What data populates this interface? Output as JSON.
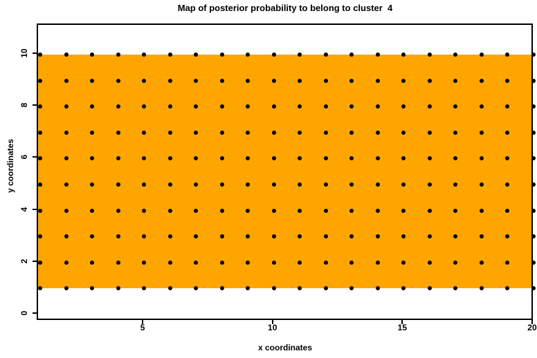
{
  "figure": {
    "background_color": "#FFFFFF",
    "axis_color": "#000000"
  },
  "chart_data": {
    "type": "heatmap",
    "title": "Map of posterior probability to belong to cluster  4",
    "xlabel": "x coordinates",
    "ylabel": "y coordinates",
    "x_ticks": [
      5,
      10,
      15,
      20
    ],
    "y_ticks": [
      0,
      2,
      4,
      6,
      8,
      10
    ],
    "xlim": [
      1,
      20
    ],
    "ylim": [
      0,
      10
    ],
    "grid": "off",
    "legend": "none",
    "filled_region": {
      "x_from": 1,
      "x_to": 20,
      "y_from": 1,
      "y_to": 10,
      "fill_color": "#FFA500"
    },
    "points": {
      "x_values": [
        1,
        2,
        3,
        4,
        5,
        6,
        7,
        8,
        9,
        10,
        11,
        12,
        13,
        14,
        15,
        16,
        17,
        18,
        19,
        20
      ],
      "y_values": [
        1,
        2,
        3,
        4,
        5,
        6,
        7,
        8,
        9,
        10
      ],
      "note": "black filled point at every (x, y) grid combination",
      "marker": "filled-circle",
      "marker_color": "#000000"
    }
  }
}
